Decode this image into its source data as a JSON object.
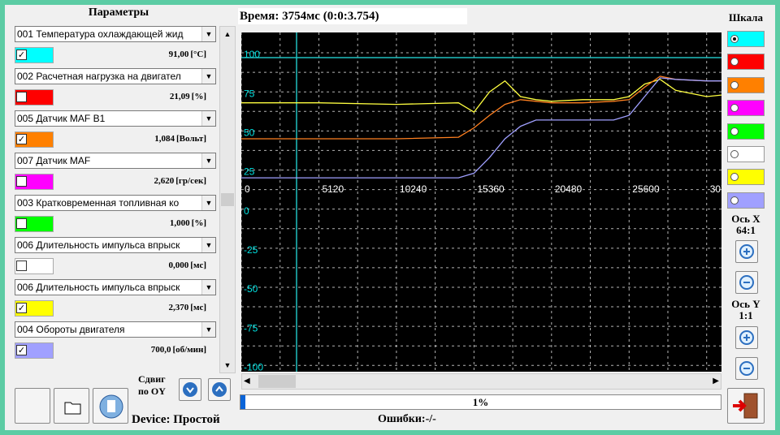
{
  "panel": {
    "title": "Параметры",
    "params": [
      {
        "name": "001 Температура охлаждающей жид",
        "checked": true,
        "color": "#00ffff",
        "value": "91,00",
        "unit": "[°C]"
      },
      {
        "name": "002 Расчетная нагрузка на двигател",
        "checked": false,
        "color": "#ff0000",
        "value": "21,09",
        "unit": "[%]"
      },
      {
        "name": "005 Датчик MAF B1",
        "checked": true,
        "color": "#ff8000",
        "value": "1,084",
        "unit": "[Вольт]"
      },
      {
        "name": "007 Датчик MAF",
        "checked": false,
        "color": "#ff00ff",
        "value": "2,620",
        "unit": "[гр/сек]"
      },
      {
        "name": "003 Кратковременная топливная ко",
        "checked": false,
        "color": "#00ff00",
        "value": "1,000",
        "unit": "[%]"
      },
      {
        "name": "006 Длительность импульса впрыск",
        "checked": false,
        "color": "#ffffff",
        "value": "0,000",
        "unit": "[мс]"
      },
      {
        "name": "006 Длительность импульса впрыск",
        "checked": true,
        "color": "#ffff00",
        "value": "2,370",
        "unit": "[мс]"
      },
      {
        "name": "004 Обороты двигателя",
        "checked": true,
        "color": "#a0a0ff",
        "value": "700,0",
        "unit": "[об/мин]"
      }
    ]
  },
  "time_label": "Время: 3754мс (0:0:3.754)",
  "chart_data": {
    "type": "line",
    "x": [
      0,
      5120,
      10240,
      14336,
      15360,
      16384,
      17408,
      18432,
      19456,
      20480,
      22528,
      24576,
      25600,
      26624,
      27648,
      28672,
      30720,
      31700
    ],
    "series": [
      {
        "color": "#ffff40",
        "values": [
          68,
          68,
          67,
          68,
          62,
          75,
          82,
          72,
          70,
          69,
          70,
          70,
          72,
          80,
          83,
          76,
          72,
          73
        ]
      },
      {
        "color": "#ff8020",
        "values": [
          45,
          45,
          45,
          46,
          52,
          60,
          67,
          70,
          69,
          68,
          68,
          69,
          70,
          78,
          85,
          83,
          82,
          82
        ]
      },
      {
        "color": "#a0a0ff",
        "values": [
          20,
          20,
          20,
          20,
          23,
          33,
          45,
          53,
          57,
          57,
          57,
          57,
          60,
          72,
          84,
          83,
          82,
          82
        ]
      }
    ],
    "xlim": [
      0,
      31700
    ],
    "ylim": [
      -104,
      113
    ],
    "xticks": [
      0,
      5120,
      10240,
      15360,
      20480,
      25600,
      30720
    ],
    "yticks": [
      100,
      75,
      50,
      25,
      0,
      -25,
      -50,
      -75,
      -100
    ],
    "grid": true
  },
  "scale": {
    "title": "Шкала",
    "selected": 0,
    "colors": [
      "#00ffff",
      "#ff0000",
      "#ff8000",
      "#ff00ff",
      "#00ff00",
      "#ffffff",
      "#ffff00",
      "#a0a0ff"
    ]
  },
  "axis_x": {
    "title": "Ось X",
    "ratio": "64:1"
  },
  "axis_y": {
    "title": "Ось Y",
    "ratio": "1:1"
  },
  "shift": [
    "Сдвиг",
    "по OY"
  ],
  "progress": {
    "value": 1,
    "label": "1%"
  },
  "status": {
    "device": "Device: Простой",
    "errors": "Ошибки:-/-"
  }
}
